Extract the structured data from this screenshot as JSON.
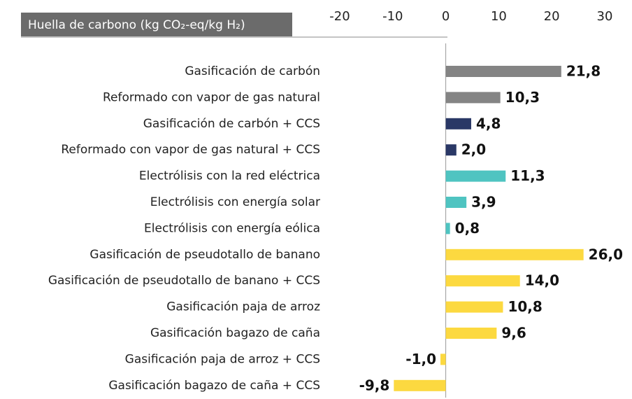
{
  "chart_data": {
    "type": "bar",
    "orientation": "horizontal",
    "title": "Huella de carbono (kg CO₂-eq/kg H₂)",
    "categories": [
      "Gasificación de carbón",
      "Reformado con vapor de gas natural",
      "Gasificación de carbón + CCS",
      "Reformado con vapor de gas natural + CCS",
      "Electrólisis con la red eléctrica",
      "Electrólisis con energía solar",
      "Electrólisis con energía eólica",
      "Gasificación de pseudotallo de banano",
      "Gasificación de pseudotallo de banano + CCS",
      "Gasificación paja de arroz",
      "Gasificación bagazo de caña",
      "Gasificación paja de arroz + CCS",
      "Gasificación bagazo de caña + CCS"
    ],
    "values": [
      21.8,
      10.3,
      4.8,
      2.0,
      11.3,
      3.9,
      0.8,
      26.0,
      14.0,
      10.8,
      9.6,
      -1.0,
      -9.8
    ],
    "value_labels": [
      "21,8",
      "10,3",
      "4,8",
      "2,0",
      "11,3",
      "3,9",
      "0,8",
      "26,0",
      "14,0",
      "10,8",
      "9,6",
      "-1,0",
      "-9,8"
    ],
    "colors": [
      "#848484",
      "#848484",
      "#2a3866",
      "#2a3866",
      "#4fc4c1",
      "#4fc4c1",
      "#4fc4c1",
      "#fcd940",
      "#fcd940",
      "#fcd940",
      "#fcd940",
      "#fcd940",
      "#fcd940"
    ],
    "xlim": [
      -20,
      30
    ],
    "xticks": [
      -20,
      -10,
      0,
      10,
      20,
      30
    ]
  }
}
